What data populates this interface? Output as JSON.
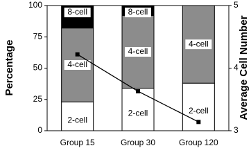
{
  "chart_data": {
    "type": "bar",
    "stacked": true,
    "categories": [
      "Group 15",
      "Group 30",
      "Group 120"
    ],
    "series": [
      {
        "name": "2-cell",
        "color": "#ffffff",
        "values": [
          23,
          34,
          38
        ]
      },
      {
        "name": "4-cell",
        "color": "#8c8c8c",
        "values": [
          59,
          58,
          62
        ]
      },
      {
        "name": "8-cell",
        "color": "#000000",
        "values": [
          18,
          8,
          0
        ]
      }
    ],
    "line": {
      "type": "line",
      "axis": "y2",
      "color": "#000000",
      "values": [
        4.22,
        3.63,
        3.14
      ]
    },
    "ylabel": "Percentage",
    "y2label": "Average Cell Number",
    "ylim": [
      0,
      100
    ],
    "yticks": [
      0,
      25,
      50,
      75,
      100
    ],
    "y2lim": [
      3,
      5
    ],
    "y2ticks": [
      3,
      4,
      5
    ]
  }
}
